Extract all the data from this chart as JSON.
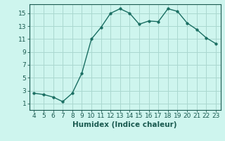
{
  "x": [
    4,
    5,
    6,
    7,
    8,
    9,
    10,
    11,
    12,
    13,
    14,
    15,
    16,
    17,
    18,
    19,
    20,
    21,
    22,
    23
  ],
  "y": [
    2.6,
    2.4,
    2.0,
    1.3,
    2.6,
    5.7,
    11.0,
    12.8,
    15.0,
    15.7,
    15.0,
    13.3,
    13.8,
    13.7,
    15.7,
    15.3,
    13.5,
    12.5,
    11.2,
    10.3
  ],
  "line_color": "#1a6e62",
  "marker_color": "#1a6e62",
  "bg_color": "#cef5ee",
  "grid_color_major": "#aad8d0",
  "grid_color_minor": "#c5ede7",
  "xlabel": "Humidex (Indice chaleur)",
  "xlim": [
    3.5,
    23.5
  ],
  "ylim": [
    0.0,
    16.4
  ],
  "xticks": [
    4,
    5,
    6,
    7,
    8,
    9,
    10,
    11,
    12,
    13,
    14,
    15,
    16,
    17,
    18,
    19,
    20,
    21,
    22,
    23
  ],
  "yticks": [
    1,
    3,
    5,
    7,
    9,
    11,
    13,
    15
  ],
  "font_color": "#1a5a50",
  "tick_fontsize": 6.5,
  "label_fontsize": 7.5
}
